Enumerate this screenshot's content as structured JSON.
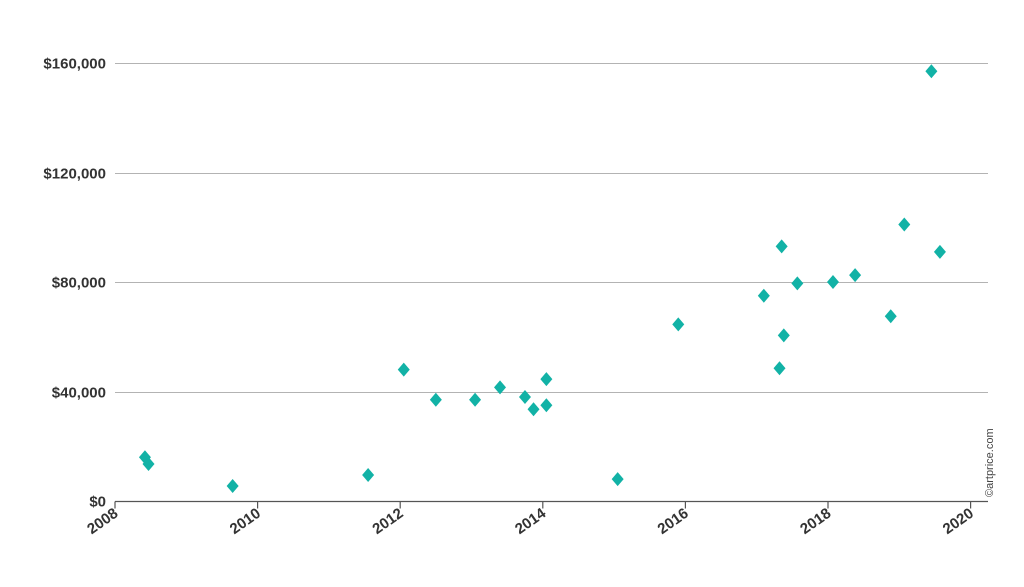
{
  "chart_data": {
    "type": "scatter",
    "title": "",
    "xlabel": "",
    "ylabel": "",
    "xlim": [
      2008,
      2020.2
    ],
    "ylim": [
      0,
      160000
    ],
    "x_ticks": [
      2008,
      2010,
      2012,
      2014,
      2016,
      2018,
      2020
    ],
    "y_ticks": [
      0,
      40000,
      80000,
      120000,
      160000
    ],
    "y_tick_labels": [
      "$0",
      "$40,000",
      "$80,000",
      "$120,000",
      "$160,000"
    ],
    "x_tick_labels": [
      "2008",
      "2010",
      "2012",
      "2014",
      "2016",
      "2018",
      "2020"
    ],
    "grid": "horizontal",
    "marker": "diamond",
    "color": "#12b2a6",
    "series": [
      {
        "points": [
          {
            "x": 2008.42,
            "y": 16000
          },
          {
            "x": 2008.47,
            "y": 13500
          },
          {
            "x": 2009.65,
            "y": 5500
          },
          {
            "x": 2011.55,
            "y": 9500
          },
          {
            "x": 2012.05,
            "y": 48000
          },
          {
            "x": 2012.5,
            "y": 37000
          },
          {
            "x": 2013.05,
            "y": 37000
          },
          {
            "x": 2013.4,
            "y": 41500
          },
          {
            "x": 2013.75,
            "y": 38000
          },
          {
            "x": 2013.87,
            "y": 33500
          },
          {
            "x": 2014.05,
            "y": 35000
          },
          {
            "x": 2014.05,
            "y": 44500
          },
          {
            "x": 2015.05,
            "y": 8000
          },
          {
            "x": 2015.9,
            "y": 64500
          },
          {
            "x": 2017.1,
            "y": 75000
          },
          {
            "x": 2017.35,
            "y": 93000
          },
          {
            "x": 2017.32,
            "y": 48500
          },
          {
            "x": 2017.38,
            "y": 60500
          },
          {
            "x": 2017.57,
            "y": 79500
          },
          {
            "x": 2018.07,
            "y": 80000
          },
          {
            "x": 2018.38,
            "y": 82500
          },
          {
            "x": 2018.88,
            "y": 67500
          },
          {
            "x": 2019.07,
            "y": 101000
          },
          {
            "x": 2019.45,
            "y": 157000
          },
          {
            "x": 2019.57,
            "y": 91000
          }
        ]
      }
    ]
  },
  "watermark": "©artprice.com"
}
